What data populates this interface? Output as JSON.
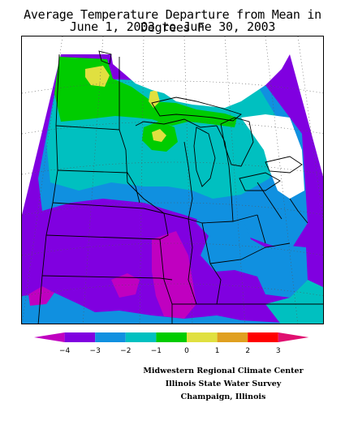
{
  "title": {
    "line1": "Average Temperature Departure from Mean in Degrees F",
    "line2": "June 1, 2003 to June 30, 2003"
  },
  "legend": {
    "ticks": [
      "-4",
      "-3",
      "-2",
      "-1",
      "0",
      "1",
      "2",
      "3"
    ],
    "colors": [
      "#c000c0",
      "#8000e0",
      "#1090e0",
      "#00c0c0",
      "#00cc00",
      "#e0e040",
      "#e0a020",
      "#ff0000",
      "#e01070"
    ]
  },
  "credits": {
    "line1": "Midwestern Regional Climate Center",
    "line2": "Illinois State Water Survey",
    "line3": "Champaign, Illinois"
  }
}
